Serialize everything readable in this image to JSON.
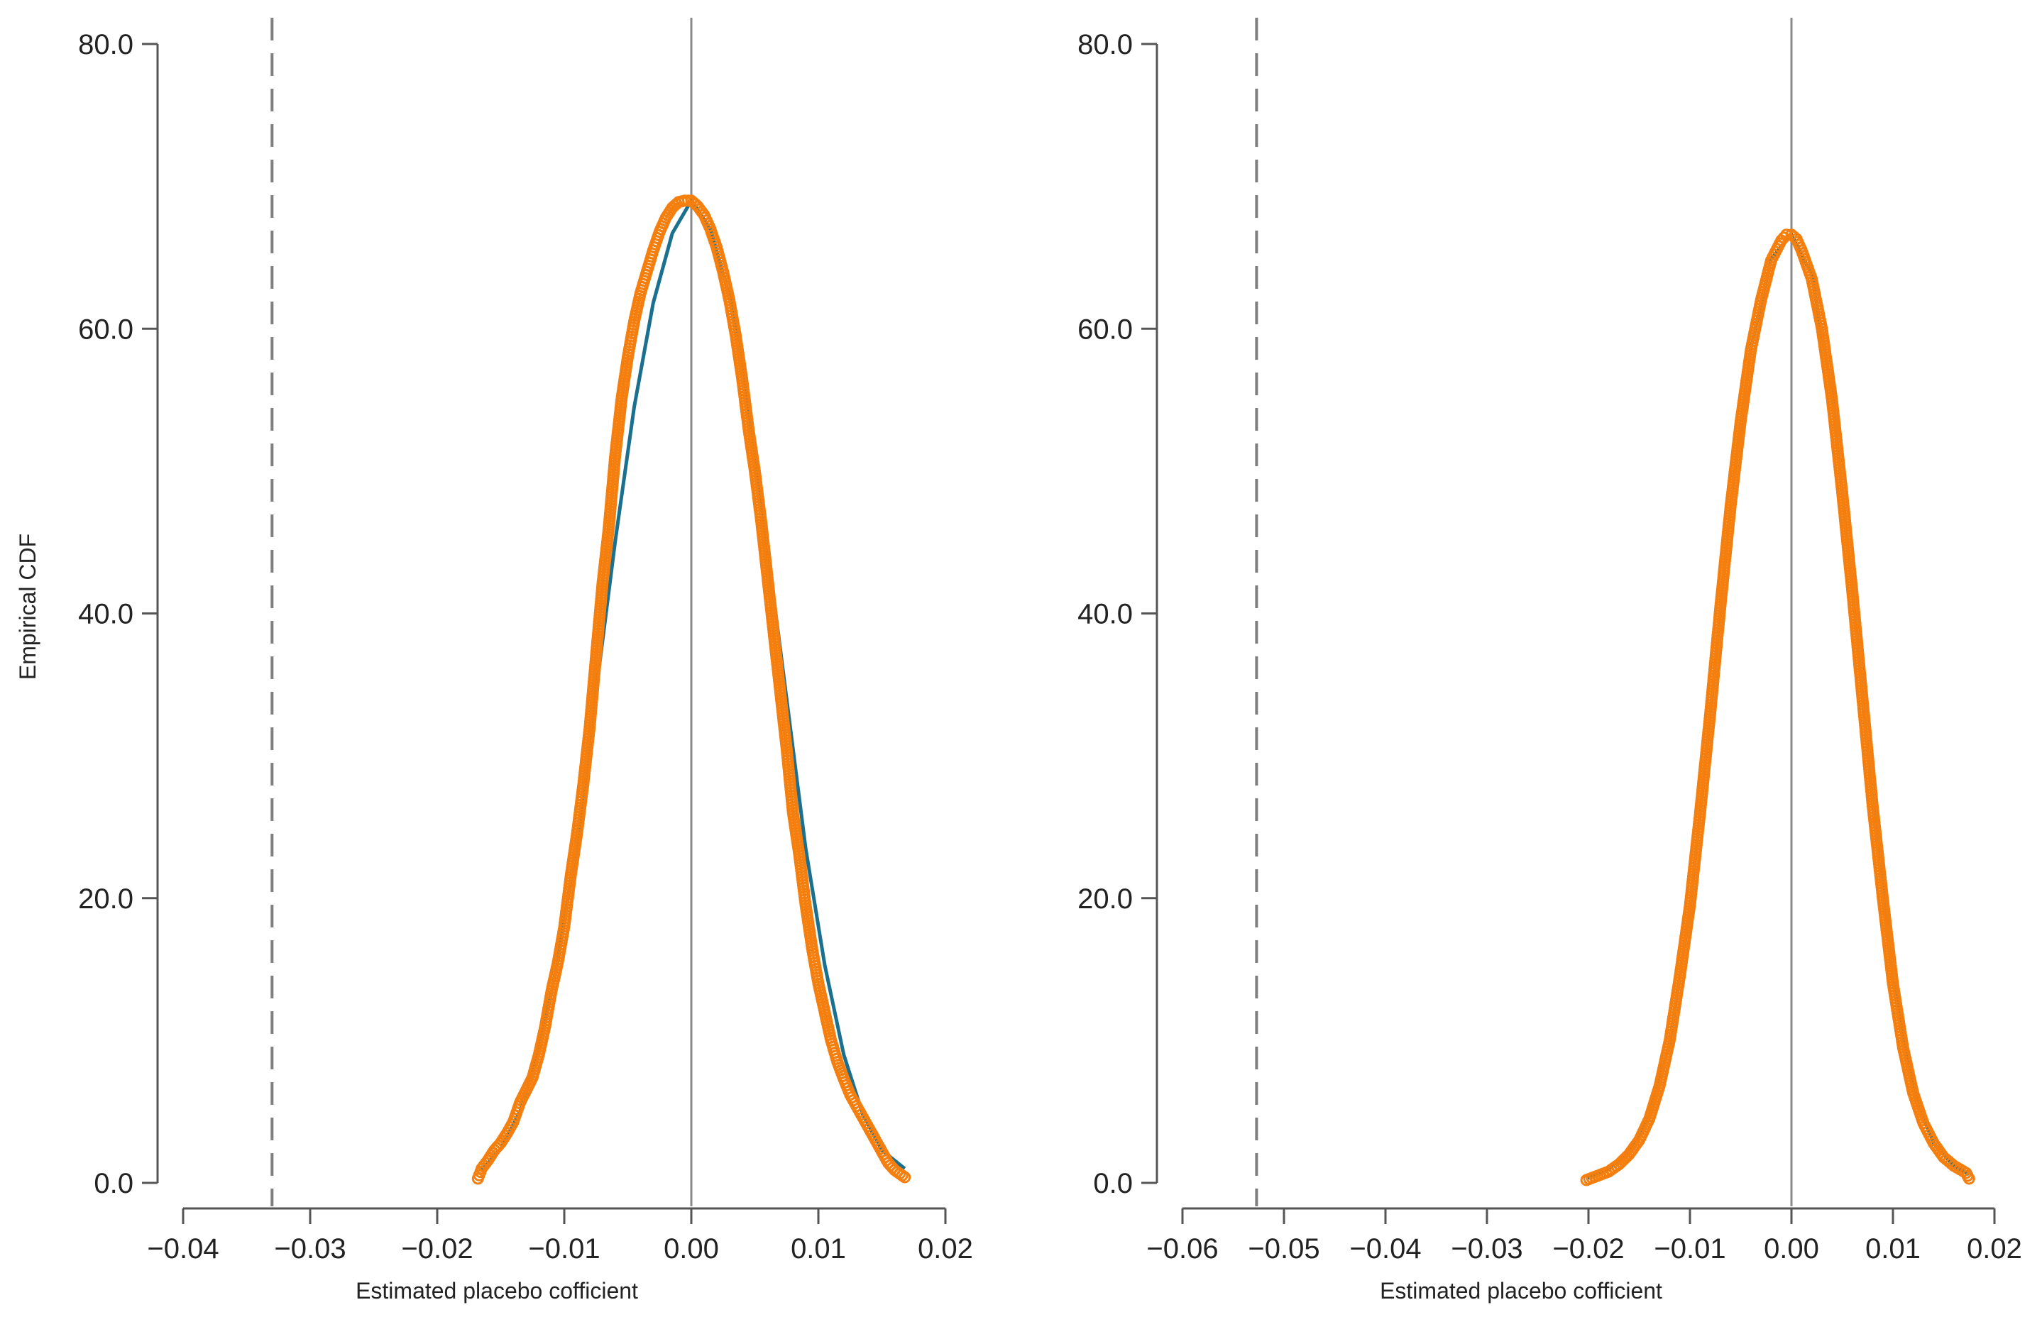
{
  "figure": {
    "ylabel": "Empirical CDF",
    "colors": {
      "points": "#f47f0f",
      "fit_line": "#1b6f8f",
      "axis": "#555555",
      "zero_line": "#8a8a8a",
      "dashed_line": "#7f7f7f"
    }
  },
  "chart_data": [
    {
      "type": "scatter",
      "title": "",
      "xlabel": "Estimated placebo cofficient",
      "ylabel": "Empirical CDF",
      "xlim": [
        -0.04,
        0.02
      ],
      "ylim": [
        0,
        80
      ],
      "xticks": [
        -0.04,
        -0.03,
        -0.02,
        -0.01,
        0.0,
        0.01,
        0.02
      ],
      "xtick_labels": [
        "−0.04",
        "−0.03",
        "−0.02",
        "−0.01",
        "0.00",
        "0.01",
        "0.02"
      ],
      "yticks": [
        0,
        20,
        40,
        60,
        80
      ],
      "ytick_labels": [
        "0.0",
        "20.0",
        "40.0",
        "60.0",
        "80.0"
      ],
      "vertical_lines": [
        {
          "x": -0.033,
          "style": "dashed"
        },
        {
          "x": 0.0,
          "style": "solid"
        }
      ],
      "series": [
        {
          "kind": "points",
          "x": [
            -0.0168,
            -0.0165,
            -0.016,
            -0.0155,
            -0.015,
            -0.0145,
            -0.014,
            -0.0135,
            -0.013,
            -0.0125,
            -0.012,
            -0.0115,
            -0.011,
            -0.0105,
            -0.01,
            -0.0095,
            -0.009,
            -0.0085,
            -0.008,
            -0.0075,
            -0.007,
            -0.0065,
            -0.006,
            -0.0055,
            -0.005,
            -0.0045,
            -0.004,
            -0.0035,
            -0.003,
            -0.0025,
            -0.002,
            -0.0015,
            -0.001,
            -0.0005,
            0.0,
            0.0005,
            0.001,
            0.0015,
            0.002,
            0.0025,
            0.003,
            0.0035,
            0.004,
            0.0045,
            0.005,
            0.0055,
            0.006,
            0.0065,
            0.007,
            0.0075,
            0.008,
            0.0085,
            0.009,
            0.0095,
            0.01,
            0.0105,
            0.011,
            0.0115,
            0.012,
            0.0125,
            0.013,
            0.0135,
            0.014,
            0.0145,
            0.015,
            0.0155,
            0.016,
            0.0168
          ],
          "y": [
            0.3,
            1.0,
            1.6,
            2.3,
            2.8,
            3.5,
            4.3,
            5.6,
            6.5,
            7.4,
            9.0,
            11.0,
            13.5,
            15.5,
            18.0,
            21.5,
            24.5,
            28.0,
            32.0,
            37.0,
            42.0,
            46.0,
            51.0,
            55.0,
            58.0,
            60.5,
            62.5,
            64.0,
            65.5,
            66.8,
            67.8,
            68.5,
            68.9,
            69.0,
            69.0,
            68.6,
            68.0,
            67.0,
            65.7,
            64.0,
            62.0,
            59.5,
            56.5,
            53.0,
            50.0,
            46.5,
            42.5,
            38.5,
            34.5,
            30.5,
            26.0,
            23.0,
            19.5,
            16.5,
            14.0,
            12.0,
            10.0,
            8.5,
            7.3,
            6.2,
            5.4,
            4.6,
            3.8,
            3.0,
            2.2,
            1.4,
            0.9,
            0.4
          ]
        },
        {
          "kind": "fit_line",
          "x": [
            -0.0165,
            -0.015,
            -0.0135,
            -0.012,
            -0.0105,
            -0.009,
            -0.0075,
            -0.006,
            -0.0045,
            -0.003,
            -0.0015,
            0.0,
            0.0015,
            0.003,
            0.0045,
            0.006,
            0.0075,
            0.009,
            0.0105,
            0.012,
            0.0135,
            0.015,
            0.0168
          ],
          "y": [
            0.9,
            2.4,
            5.0,
            9.2,
            15.6,
            24.0,
            34.5,
            45.0,
            54.5,
            61.8,
            66.7,
            69.0,
            67.0,
            62.3,
            54.5,
            44.5,
            34.0,
            23.5,
            15.3,
            9.0,
            4.8,
            2.3,
            1.0
          ]
        }
      ]
    },
    {
      "type": "scatter",
      "title": "",
      "xlabel": "Estimated placebo cofficient",
      "ylabel": "",
      "xlim": [
        -0.06,
        0.02
      ],
      "ylim": [
        0,
        80
      ],
      "xticks": [
        -0.06,
        -0.05,
        -0.04,
        -0.03,
        -0.02,
        -0.01,
        0.0,
        0.01,
        0.02
      ],
      "xtick_labels": [
        "−0.06",
        "−0.05",
        "−0.04",
        "−0.03",
        "−0.02",
        "−0.01",
        "0.00",
        "0.01",
        "0.02"
      ],
      "yticks": [
        0,
        20,
        40,
        60,
        80
      ],
      "ytick_labels": [
        "0.0",
        "20.0",
        "40.0",
        "60.0",
        "80.0"
      ],
      "vertical_lines": [
        {
          "x": -0.0527,
          "style": "dashed"
        },
        {
          "x": 0.0,
          "style": "solid"
        }
      ],
      "series": [
        {
          "kind": "points",
          "x": [
            -0.0202,
            -0.018,
            -0.017,
            -0.016,
            -0.015,
            -0.014,
            -0.013,
            -0.012,
            -0.011,
            -0.01,
            -0.009,
            -0.008,
            -0.007,
            -0.006,
            -0.005,
            -0.004,
            -0.003,
            -0.002,
            -0.001,
            -0.0005,
            0.0,
            0.0005,
            0.001,
            0.002,
            0.003,
            0.004,
            0.005,
            0.006,
            0.007,
            0.008,
            0.009,
            0.01,
            0.011,
            0.012,
            0.013,
            0.014,
            0.015,
            0.016,
            0.0172,
            0.0175
          ],
          "y": [
            0.2,
            0.8,
            1.3,
            2.0,
            3.0,
            4.5,
            6.8,
            10.0,
            14.5,
            19.5,
            26.0,
            33.0,
            40.5,
            47.5,
            53.5,
            58.5,
            62.0,
            64.8,
            66.2,
            66.6,
            66.6,
            66.3,
            65.5,
            63.5,
            60.0,
            55.0,
            48.5,
            41.5,
            34.0,
            26.5,
            20.0,
            14.0,
            9.5,
            6.3,
            4.2,
            2.8,
            1.8,
            1.2,
            0.7,
            0.3
          ]
        },
        {
          "kind": "fit_line",
          "x": [
            -0.0202,
            -0.018,
            -0.016,
            -0.014,
            -0.012,
            -0.01,
            -0.008,
            -0.006,
            -0.004,
            -0.002,
            0.0,
            0.002,
            0.004,
            0.006,
            0.008,
            0.01,
            0.012,
            0.014,
            0.016,
            0.0175
          ],
          "y": [
            0.3,
            1.0,
            2.2,
            4.6,
            9.8,
            19.2,
            32.8,
            47.5,
            58.6,
            64.9,
            66.6,
            63.8,
            55.4,
            41.8,
            26.8,
            14.2,
            6.5,
            2.8,
            1.2,
            0.6
          ]
        }
      ]
    }
  ]
}
